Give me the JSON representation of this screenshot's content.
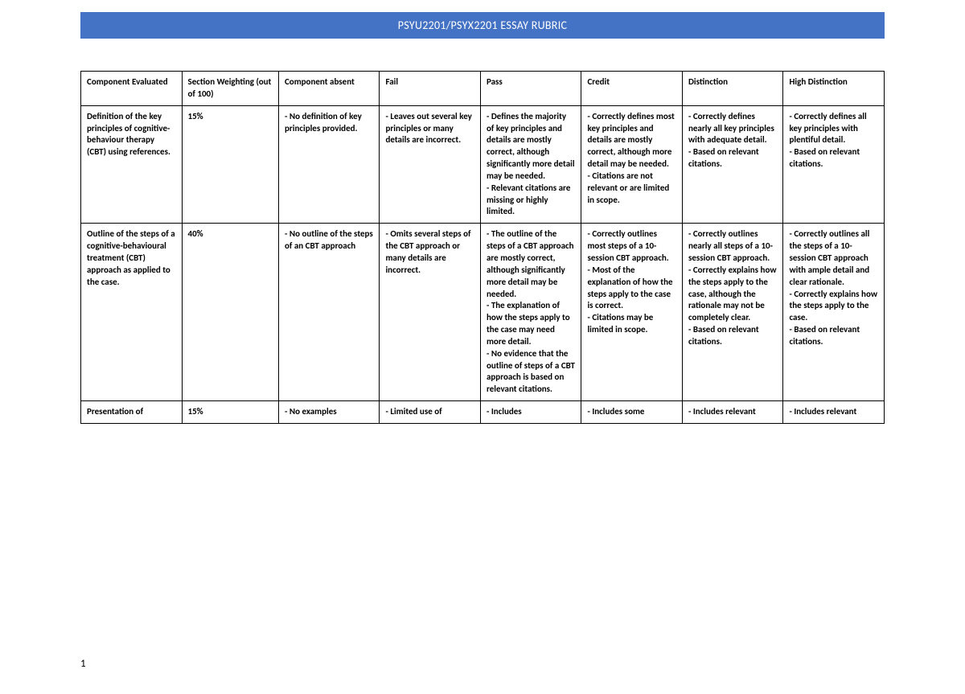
{
  "banner": {
    "title": "PSYU2201/PSYX2201 ESSAY RUBRIC",
    "bg_color": "#4472c4",
    "text_color": "#ffffff"
  },
  "rubric": {
    "type": "table",
    "columns": [
      "Component Evaluated",
      "Section Weighting (out of 100)",
      "Component absent",
      "Fail",
      "Pass",
      "Credit",
      "Distinction",
      "High Distinction"
    ],
    "rows": [
      {
        "component": "Definition of the key principles of cognitive-behaviour therapy (CBT) using references.",
        "weighting": "15%",
        "absent": "- No definition of key principles provided.",
        "fail": "- Leaves out several key principles or many details are incorrect.",
        "pass": "- Defines the majority of key principles and details are mostly correct, although significantly more detail may be needed.\n- Relevant citations are missing or highly limited.",
        "credit": "- Correctly defines most key principles and details are mostly correct, although more detail may be needed.\n- Citations are not relevant or are limited in scope.",
        "distinction": "- Correctly defines nearly all key principles with adequate detail.\n- Based on relevant citations.",
        "high_distinction": "- Correctly defines all key principles with plentiful detail.\n- Based on relevant citations."
      },
      {
        "component": "Outline of the steps of a cognitive-behavioural treatment (CBT) approach as applied to the case.",
        "weighting": "40%",
        "absent": "- No outline of the steps of an CBT approach",
        "fail": "- Omits several steps of the CBT approach or many details are incorrect.",
        "pass": "- The outline of the steps of a CBT approach are mostly correct, although significantly more detail may be needed.\n- The explanation of how the steps apply to the case may need more detail.\n- No evidence that the outline of steps of a CBT approach is based on relevant citations.",
        "credit": "- Correctly outlines most steps of a 10-session CBT approach.\n- Most of the explanation of how the steps apply to the case is correct.\n- Citations may be limited in scope.",
        "distinction": "- Correctly outlines nearly all steps of a 10- session CBT approach.\n- Correctly explains how the steps apply to the case, although the rationale may not be completely clear.\n- Based on relevant citations.",
        "high_distinction": "- Correctly outlines all the steps of a 10-session CBT approach with ample detail and clear rationale.\n- Correctly explains how the steps apply to the case.\n- Based on relevant citations."
      },
      {
        "component": "Presentation of",
        "weighting": "15%",
        "absent": "- No examples",
        "fail": "- Limited use of",
        "pass": "- Includes",
        "credit": "- Includes some",
        "distinction": "- Includes relevant",
        "high_distinction": "- Includes relevant"
      }
    ],
    "border_color": "#000000",
    "font_size": 11,
    "font_weight": "bold"
  },
  "page_number": "1"
}
